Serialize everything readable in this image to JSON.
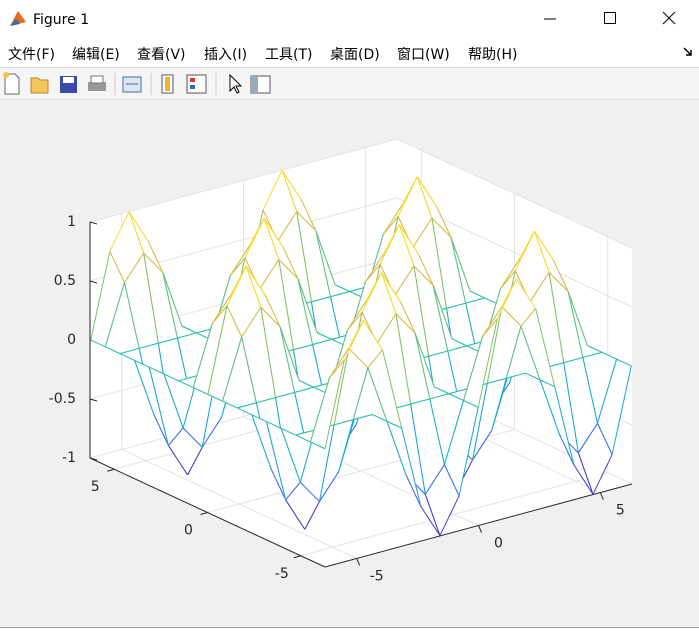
{
  "window": {
    "title": "Figure 1"
  },
  "menu": [
    "文件(F)",
    "编辑(E)",
    "查看(V)",
    "插入(I)",
    "工具(T)",
    "桌面(D)",
    "窗口(W)",
    "帮助(H)"
  ],
  "chart_data": {
    "type": "mesh",
    "x": [
      -6.283,
      -5.498,
      -4.712,
      -3.927,
      -3.142,
      -2.356,
      -1.571,
      -0.785,
      0,
      0.785,
      1.571,
      2.356,
      3.142,
      3.927,
      4.712,
      5.498,
      6.283
    ],
    "y": [
      -6.283,
      -5.498,
      -4.712,
      -3.927,
      -3.142,
      -2.356,
      -1.571,
      -0.785,
      0,
      0.785,
      1.571,
      2.356,
      3.142,
      3.927,
      4.712,
      5.498,
      6.283
    ],
    "z": [
      [
        0,
        0.707,
        1,
        0.707,
        0,
        -0.707,
        -1,
        -0.707,
        0,
        0.707,
        1,
        0.707,
        0,
        -0.707,
        -1,
        -0.707,
        0
      ],
      [
        0,
        0.5,
        0.707,
        0.5,
        0,
        -0.5,
        -0.707,
        -0.5,
        0,
        0.5,
        0.707,
        0.5,
        0,
        -0.5,
        -0.707,
        -0.5,
        0
      ],
      [
        0,
        0,
        0,
        0,
        0,
        0,
        0,
        0,
        0,
        0,
        0,
        0,
        0,
        0,
        0,
        0,
        0
      ],
      [
        0,
        -0.5,
        -0.707,
        -0.5,
        0,
        0.5,
        0.707,
        0.5,
        0,
        -0.5,
        -0.707,
        -0.5,
        0,
        0.5,
        0.707,
        0.5,
        0
      ],
      [
        0,
        -0.707,
        -1,
        -0.707,
        0,
        0.707,
        1,
        0.707,
        0,
        -0.707,
        -1,
        -0.707,
        0,
        0.707,
        1,
        0.707,
        0
      ],
      [
        0,
        -0.5,
        -0.707,
        -0.5,
        0,
        0.5,
        0.707,
        0.5,
        0,
        -0.5,
        -0.707,
        -0.5,
        0,
        0.5,
        0.707,
        0.5,
        0
      ],
      [
        0,
        0,
        0,
        0,
        0,
        0,
        0,
        0,
        0,
        0,
        0,
        0,
        0,
        0,
        0,
        0,
        0
      ],
      [
        0,
        0.5,
        0.707,
        0.5,
        0,
        -0.5,
        -0.707,
        -0.5,
        0,
        0.5,
        0.707,
        0.5,
        0,
        -0.5,
        -0.707,
        -0.5,
        0
      ],
      [
        0,
        0.707,
        1,
        0.707,
        0,
        -0.707,
        -1,
        -0.707,
        0,
        0.707,
        1,
        0.707,
        0,
        -0.707,
        -1,
        -0.707,
        0
      ],
      [
        0,
        0.5,
        0.707,
        0.5,
        0,
        -0.5,
        -0.707,
        -0.5,
        0,
        0.5,
        0.707,
        0.5,
        0,
        -0.5,
        -0.707,
        -0.5,
        0
      ],
      [
        0,
        0,
        0,
        0,
        0,
        0,
        0,
        0,
        0,
        0,
        0,
        0,
        0,
        0,
        0,
        0,
        0
      ],
      [
        0,
        -0.5,
        -0.707,
        -0.5,
        0,
        0.5,
        0.707,
        0.5,
        0,
        -0.5,
        -0.707,
        -0.5,
        0,
        0.5,
        0.707,
        0.5,
        0
      ],
      [
        0,
        -0.707,
        -1,
        -0.707,
        0,
        0.707,
        1,
        0.707,
        0,
        -0.707,
        -1,
        -0.707,
        0,
        0.707,
        1,
        0.707,
        0
      ],
      [
        0,
        -0.5,
        -0.707,
        -0.5,
        0,
        0.5,
        0.707,
        0.5,
        0,
        -0.5,
        -0.707,
        -0.5,
        0,
        0.5,
        0.707,
        0.5,
        0
      ],
      [
        0,
        0,
        0,
        0,
        0,
        0,
        0,
        0,
        0,
        0,
        0,
        0,
        0,
        0,
        0,
        0,
        0
      ],
      [
        0,
        0.5,
        0.707,
        0.5,
        0,
        -0.5,
        -0.707,
        -0.5,
        0,
        0.5,
        0.707,
        0.5,
        0,
        -0.5,
        -0.707,
        -0.5,
        0
      ],
      [
        0,
        0.707,
        1,
        0.707,
        0,
        -0.707,
        -1,
        -0.707,
        0,
        0.707,
        1,
        0.707,
        0,
        -0.707,
        -1,
        -0.707,
        0
      ]
    ],
    "xlim": [
      -6.3,
      6.3
    ],
    "ylim": [
      -6.3,
      6.3
    ],
    "zlim": [
      -1,
      1
    ],
    "xticks": [
      -5,
      0,
      5
    ],
    "yticks": [
      -5,
      0,
      5
    ],
    "zticks": [
      -1,
      -0.5,
      0,
      0.5,
      1
    ],
    "grid": true,
    "colormap": [
      "#3e26a8",
      "#4653ef",
      "#1e9bdf",
      "#12b5c6",
      "#33c09a",
      "#a4be55",
      "#f0ba3b",
      "#f9fb0e"
    ]
  }
}
